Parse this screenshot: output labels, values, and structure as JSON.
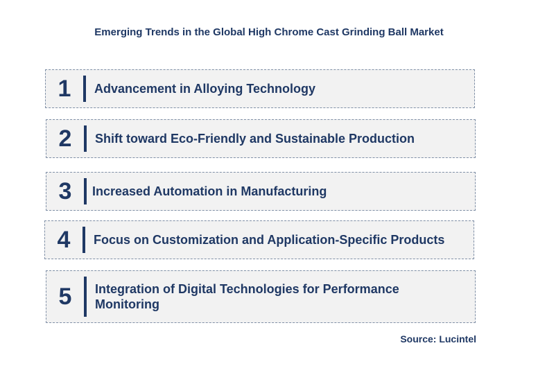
{
  "title": "Emerging Trends in the Global High Chrome Cast Grinding Ball Market",
  "trends": [
    {
      "number": "1",
      "label": "Advancement in Alloying Technology"
    },
    {
      "number": "2",
      "label": "Shift toward Eco-Friendly and Sustainable Production"
    },
    {
      "number": "3",
      "label": "Increased Automation in Manufacturing"
    },
    {
      "number": "4",
      "label": "Focus on Customization and Application-Specific Products"
    },
    {
      "number": "5",
      "label": "Integration of Digital Technologies for Performance Monitoring"
    }
  ],
  "source": "Source: Lucintel",
  "colors": {
    "text": "#1f3864",
    "box_background": "#f2f2f2",
    "box_border": "#7f8fa6"
  }
}
